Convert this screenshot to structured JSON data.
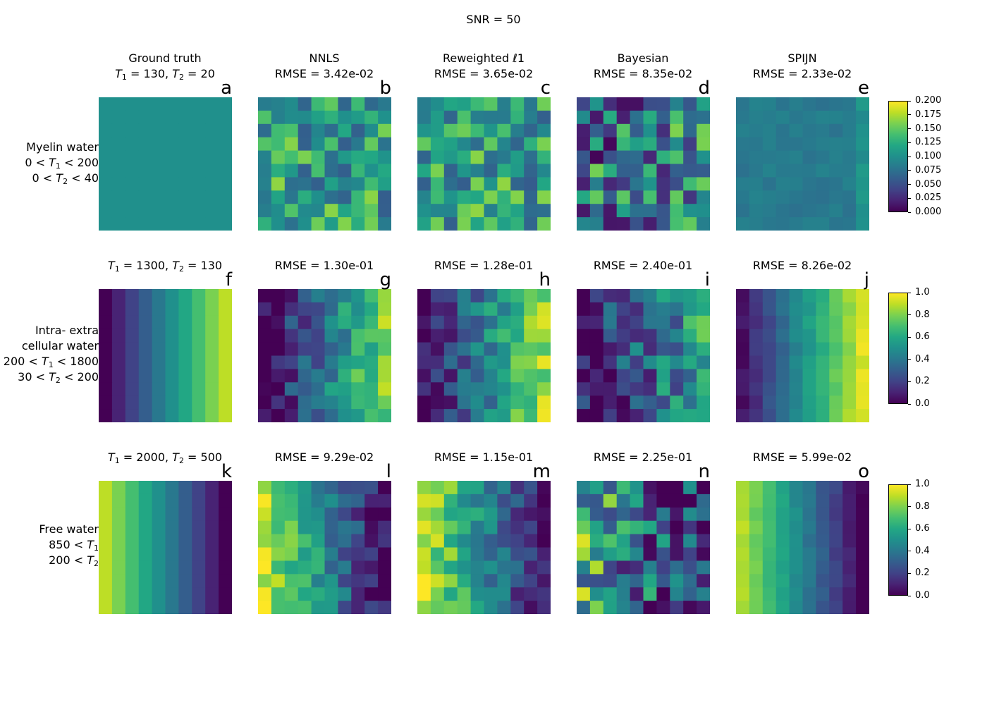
{
  "figure": {
    "title": "SNR = 50"
  },
  "columns": [
    {
      "title": "Ground truth",
      "rmse": [
        "",
        "",
        ""
      ]
    },
    {
      "title": "NNLS",
      "rmse": [
        "RMSE = 3.42e-02",
        "RMSE = 1.30e-01",
        "RMSE = 9.29e-02"
      ]
    },
    {
      "title": "Reweighted ℓ1",
      "rmse": [
        "RMSE = 3.65e-02",
        "RMSE = 1.28e-01",
        "RMSE = 1.15e-01"
      ]
    },
    {
      "title": "Bayesian",
      "rmse": [
        "RMSE = 8.35e-02",
        "RMSE = 2.40e-01",
        "RMSE = 2.25e-01"
      ]
    },
    {
      "title": "SPIJN",
      "rmse": [
        "RMSE = 2.33e-02",
        "RMSE = 8.26e-02",
        "RMSE = 5.99e-02"
      ]
    }
  ],
  "rows": [
    {
      "ground_truth": "T1 = 130, T2 = 20",
      "label_lines": [
        "Myelin water",
        "0 < T1 < 200",
        "0 < T2 < 40"
      ]
    },
    {
      "ground_truth": "T1 = 1300, T2 = 130",
      "label_lines": [
        "Intra- extra",
        "cellular water",
        "200 < T1 < 1800",
        "30 < T2 < 200"
      ]
    },
    {
      "ground_truth": "T1 = 2000, T2 = 500",
      "label_lines": [
        "Free water",
        "850 < T1",
        "200 < T2"
      ]
    }
  ],
  "panel_letters": [
    "a",
    "b",
    "c",
    "d",
    "e",
    "f",
    "g",
    "h",
    "i",
    "j",
    "k",
    "l",
    "m",
    "n",
    "o"
  ],
  "colorbars": [
    {
      "min": 0.0,
      "max": 0.2,
      "ticks": [
        "0.000",
        "0.025",
        "0.050",
        "0.075",
        "0.100",
        "0.125",
        "0.150",
        "0.175",
        "0.200"
      ]
    },
    {
      "min": 0.0,
      "max": 1.0,
      "ticks": [
        "0.0",
        "0.2",
        "0.4",
        "0.6",
        "0.8",
        "1.0"
      ]
    },
    {
      "min": 0.0,
      "max": 1.0,
      "ticks": [
        "0.0",
        "0.2",
        "0.4",
        "0.6",
        "0.8",
        "1.0"
      ]
    }
  ],
  "chart_data": {
    "type": "heatmap",
    "title": "SNR = 50",
    "colormap": "viridis",
    "grid_size": [
      10,
      10
    ],
    "panels": [
      {
        "id": "a",
        "row": 0,
        "col": 0,
        "kind": "constant",
        "value": 0.1
      },
      {
        "id": "b",
        "row": 0,
        "col": 1,
        "kind": "noisy",
        "base": 0.09,
        "spread": 0.11,
        "seed": 11
      },
      {
        "id": "c",
        "row": 0,
        "col": 2,
        "kind": "noisy",
        "base": 0.09,
        "spread": 0.11,
        "seed": 23
      },
      {
        "id": "d",
        "row": 0,
        "col": 3,
        "kind": "noisy",
        "base": 0.05,
        "spread": 0.16,
        "seed": 37
      },
      {
        "id": "e",
        "row": 0,
        "col": 4,
        "kind": "smooth",
        "base": 0.082,
        "spread": 0.015,
        "seed": 41
      },
      {
        "id": "f",
        "row": 1,
        "col": 0,
        "kind": "gradient",
        "from": 0.0,
        "to": 0.9,
        "spread": 0.0,
        "seed": 1
      },
      {
        "id": "g",
        "row": 1,
        "col": 1,
        "kind": "gradient",
        "from": 0.0,
        "to": 0.8,
        "spread": 0.35,
        "seed": 53
      },
      {
        "id": "h",
        "row": 1,
        "col": 2,
        "kind": "gradient",
        "from": 0.0,
        "to": 0.85,
        "spread": 0.35,
        "seed": 61
      },
      {
        "id": "i",
        "row": 1,
        "col": 3,
        "kind": "gradient",
        "from": 0.05,
        "to": 0.55,
        "spread": 0.5,
        "seed": 71
      },
      {
        "id": "j",
        "row": 1,
        "col": 4,
        "kind": "gradient",
        "from": 0.05,
        "to": 0.95,
        "spread": 0.08,
        "seed": 83
      },
      {
        "id": "k",
        "row": 2,
        "col": 0,
        "kind": "gradient",
        "from": 0.9,
        "to": 0.0,
        "spread": 0.0,
        "seed": 2
      },
      {
        "id": "l",
        "row": 2,
        "col": 1,
        "kind": "gradient",
        "from": 0.9,
        "to": 0.05,
        "spread": 0.3,
        "seed": 97
      },
      {
        "id": "m",
        "row": 2,
        "col": 2,
        "kind": "gradient",
        "from": 0.9,
        "to": 0.05,
        "spread": 0.3,
        "seed": 101
      },
      {
        "id": "n",
        "row": 2,
        "col": 3,
        "kind": "gradient",
        "from": 0.6,
        "to": 0.1,
        "spread": 0.7,
        "seed": 113
      },
      {
        "id": "o",
        "row": 2,
        "col": 4,
        "kind": "gradient",
        "from": 0.88,
        "to": 0.0,
        "spread": 0.06,
        "seed": 127
      }
    ],
    "row_value_range": [
      [
        0.0,
        0.2
      ],
      [
        0.0,
        1.0
      ],
      [
        0.0,
        1.0
      ]
    ]
  }
}
